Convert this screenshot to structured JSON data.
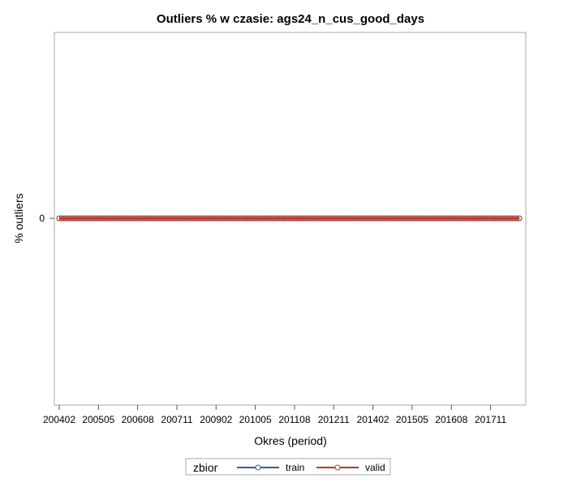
{
  "chart_data": {
    "type": "line",
    "title": "Outliers % w czasie: ags24_n_cus_good_days",
    "xlabel": "Okres (period)",
    "ylabel": "% outliers",
    "x_start": "200402",
    "x_end": "201810",
    "x_ticks": [
      "200402",
      "200505",
      "200608",
      "200711",
      "200902",
      "201005",
      "201108",
      "201211",
      "201402",
      "201505",
      "201608",
      "201711"
    ],
    "y_ticks": [
      0
    ],
    "series": [
      {
        "name": "train",
        "color": "#3e5aa0",
        "value": 0,
        "marker": "circle"
      },
      {
        "name": "valid",
        "color": "#b23a2e",
        "value": 0,
        "marker": "circle"
      }
    ],
    "legend": {
      "title": "zbior",
      "position": "bottom"
    },
    "grid": false
  }
}
